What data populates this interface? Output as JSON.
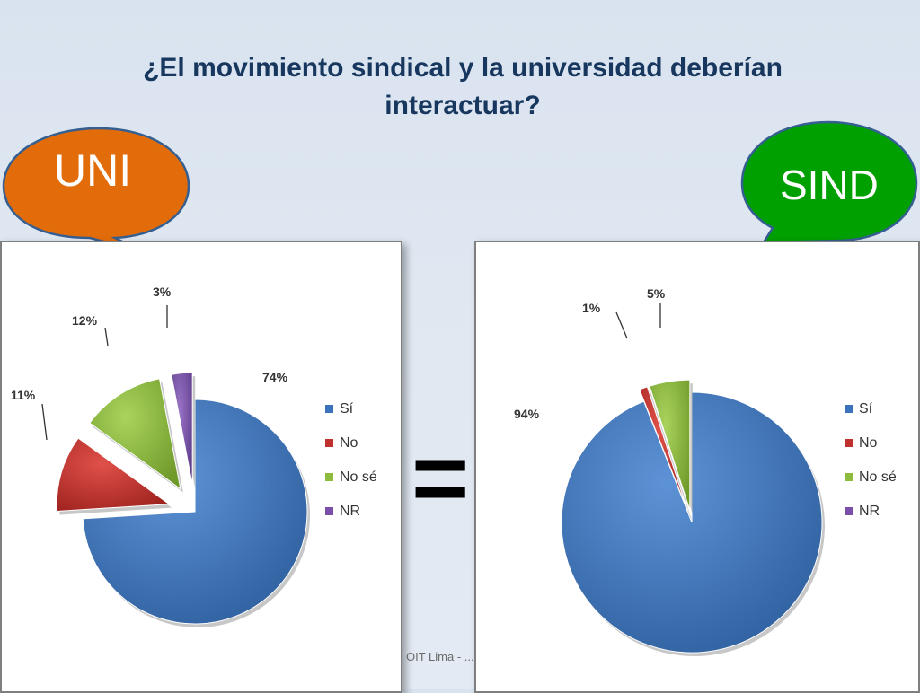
{
  "title": "¿El movimiento sindical y la universidad deberían interactuar?",
  "bubbles": {
    "uni": {
      "label": "UNI",
      "color": "#e36c0a"
    },
    "sind": {
      "label": "SIND",
      "color": "#00a000"
    }
  },
  "equals_sign": "=",
  "footer": "OIT Lima - ...",
  "legend": [
    "Sí",
    "No",
    "No sé",
    "NR"
  ],
  "colors": {
    "si": "#3a74bd",
    "no": "#c0302c",
    "nose": "#8dbb3c",
    "nr": "#7a4fa8"
  },
  "chart_data": [
    {
      "type": "pie",
      "name": "UNI",
      "categories": [
        "Sí",
        "No",
        "No sé",
        "NR"
      ],
      "values": [
        74,
        11,
        12,
        3
      ],
      "labels": [
        "74%",
        "11%",
        "12%",
        "3%"
      ],
      "legend_placement": "right"
    },
    {
      "type": "pie",
      "name": "SIND",
      "categories": [
        "Sí",
        "No",
        "No sé",
        "NR"
      ],
      "values": [
        94,
        1,
        5,
        0
      ],
      "labels": [
        "94%",
        "1%",
        "5%"
      ],
      "legend_placement": "right"
    }
  ]
}
